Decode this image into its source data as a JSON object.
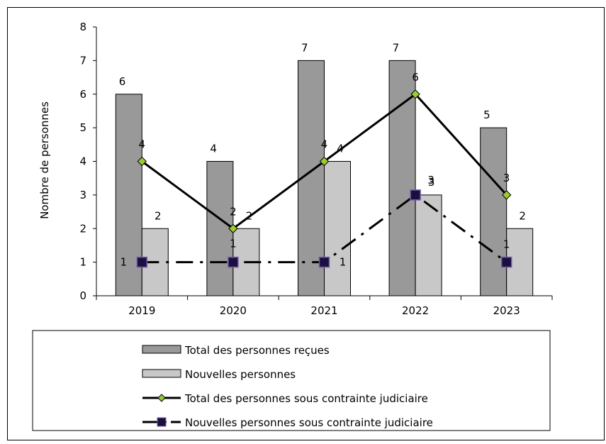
{
  "chart_data": {
    "type": "bar",
    "categories": [
      "2019",
      "2020",
      "2021",
      "2022",
      "2023"
    ],
    "ylabel": "Nombre de personnes",
    "ylim": [
      0,
      8
    ],
    "yticks": [
      0,
      1,
      2,
      3,
      4,
      5,
      6,
      7,
      8
    ],
    "grid": false,
    "legend_position": "bottom",
    "series": [
      {
        "name": "Total des personnes reçues",
        "kind": "bar",
        "color": "#999999",
        "values": [
          6,
          4,
          7,
          7,
          5
        ]
      },
      {
        "name": "Nouvelles personnes",
        "kind": "bar",
        "color": "#c8c8c8",
        "values": [
          2,
          2,
          4,
          3,
          2
        ]
      },
      {
        "name": "Total des personnes sous contrainte judiciaire",
        "kind": "line",
        "style": "solid",
        "marker": "diamond",
        "marker_color": "#99cc33",
        "values": [
          4,
          2,
          4,
          6,
          3
        ]
      },
      {
        "name": "Nouvelles personnes sous contrainte judiciaire",
        "kind": "line",
        "style": "dash-dot",
        "marker": "square",
        "marker_color": "#1a1040",
        "values": [
          1,
          1,
          1,
          3,
          1
        ]
      }
    ]
  }
}
